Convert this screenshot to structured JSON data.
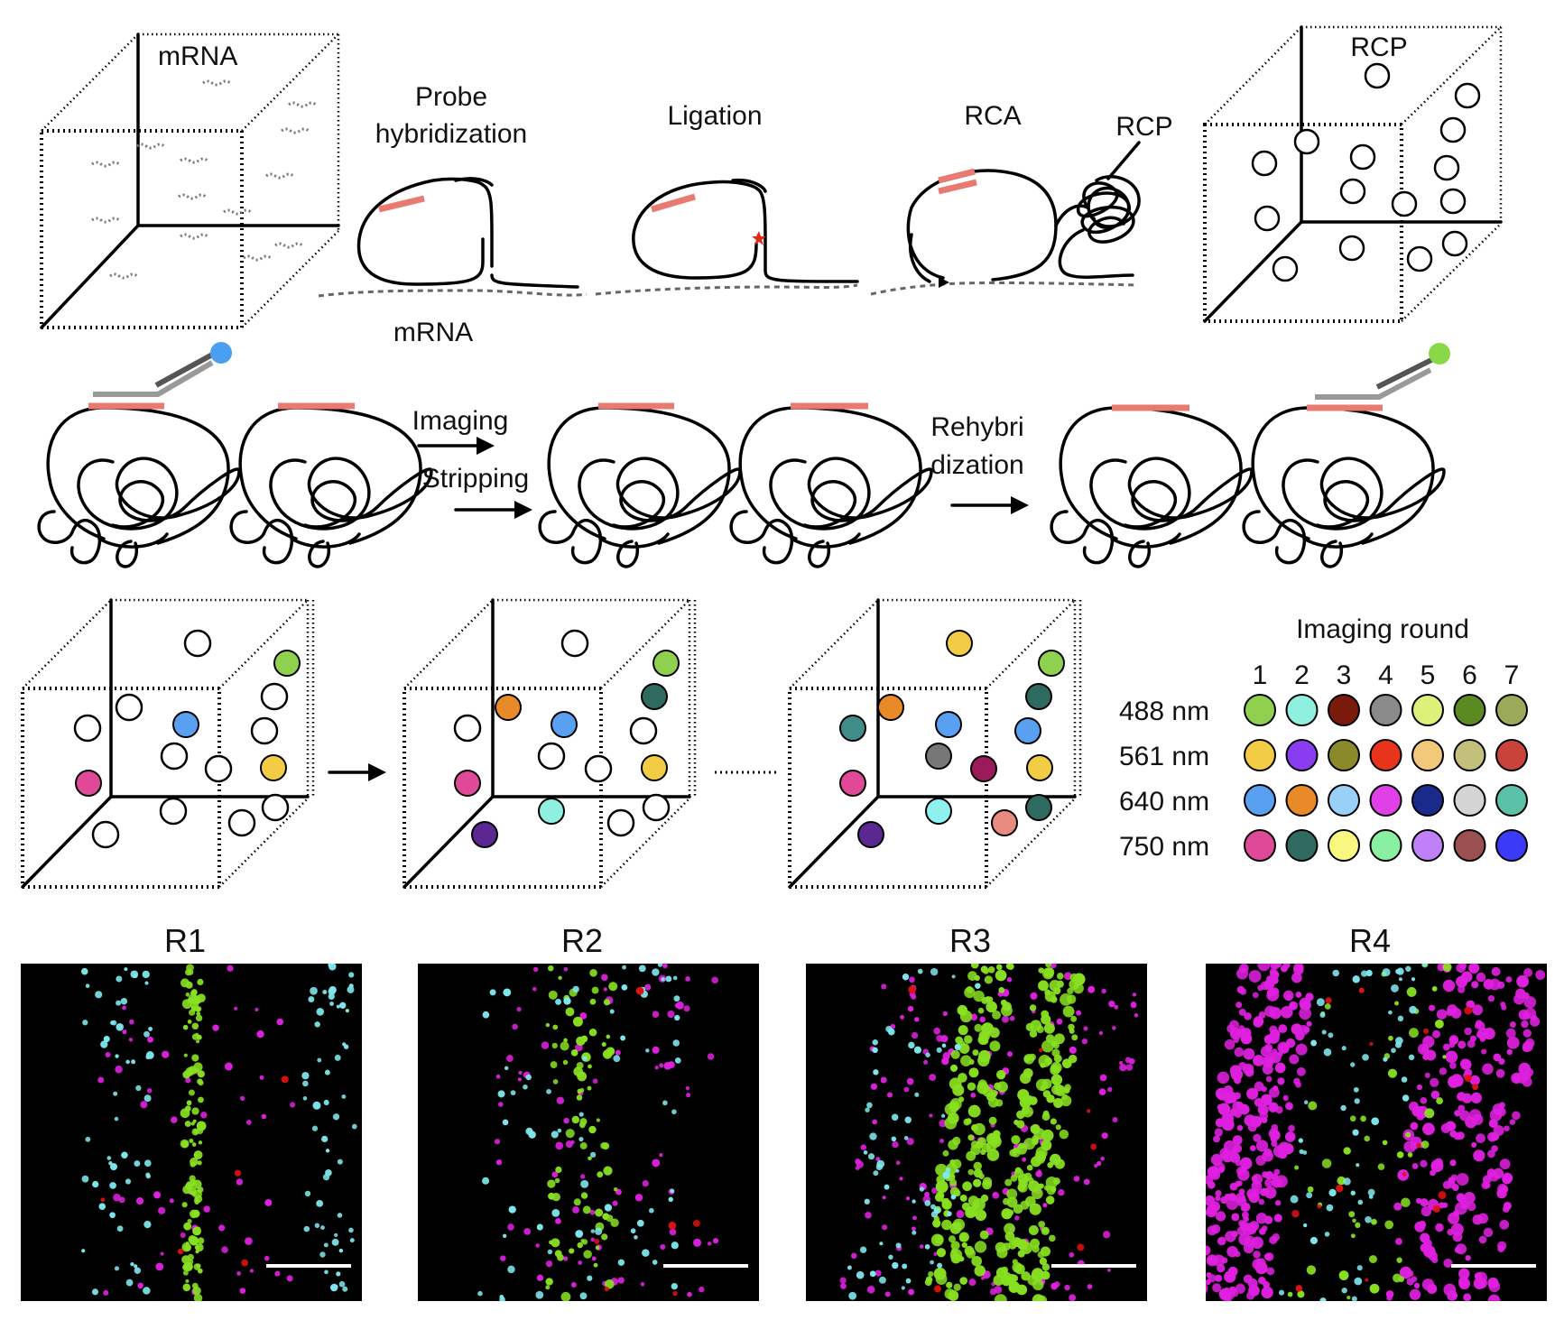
{
  "labels": {
    "mrna_box": "mRNA",
    "probe_hyb_1": "Probe",
    "probe_hyb_2": "hybridization",
    "ligation": "Ligation",
    "rca": "RCA",
    "rcp_pointer": "RCP",
    "rcp_box": "RCP",
    "mrna_under": "mRNA",
    "imaging": "Imaging",
    "stripping": "Stripping",
    "rehyb_1": "Rehybri",
    "rehyb_2": "dization",
    "imaging_round": "Imaging round"
  },
  "color_table": {
    "rounds": [
      "1",
      "2",
      "3",
      "4",
      "5",
      "6",
      "7"
    ],
    "rows": [
      {
        "channel": "488 nm",
        "colors": [
          "#8fd14f",
          "#8ff0e0",
          "#7a1a0a",
          "#8a8a8a",
          "#dcf07a",
          "#5c8a22",
          "#9aaa58"
        ]
      },
      {
        "channel": "561 nm",
        "colors": [
          "#f2cc44",
          "#8a3cf0",
          "#8a8a2a",
          "#e8341a",
          "#f2c87a",
          "#c2c07a",
          "#c8443a"
        ]
      },
      {
        "channel": "640 nm",
        "colors": [
          "#5aa0f0",
          "#e88a28",
          "#98d0f8",
          "#e040e8",
          "#1a2a8a",
          "#d4d4d4",
          "#5ac0a8"
        ]
      },
      {
        "channel": "750 nm",
        "colors": [
          "#e04898",
          "#2e6a60",
          "#f8f880",
          "#88f0a0",
          "#c080f8",
          "#9a5050",
          "#3a3af8"
        ]
      }
    ]
  },
  "micrographs": [
    {
      "label": "R1"
    },
    {
      "label": "R2"
    },
    {
      "label": "R3"
    },
    {
      "label": "R4"
    }
  ],
  "dye_colors": {
    "blue_dye": "#4aa0f0",
    "green_dye": "#8ad848",
    "probe_pink": "#e97a72",
    "ligation_star": "#e02818"
  }
}
